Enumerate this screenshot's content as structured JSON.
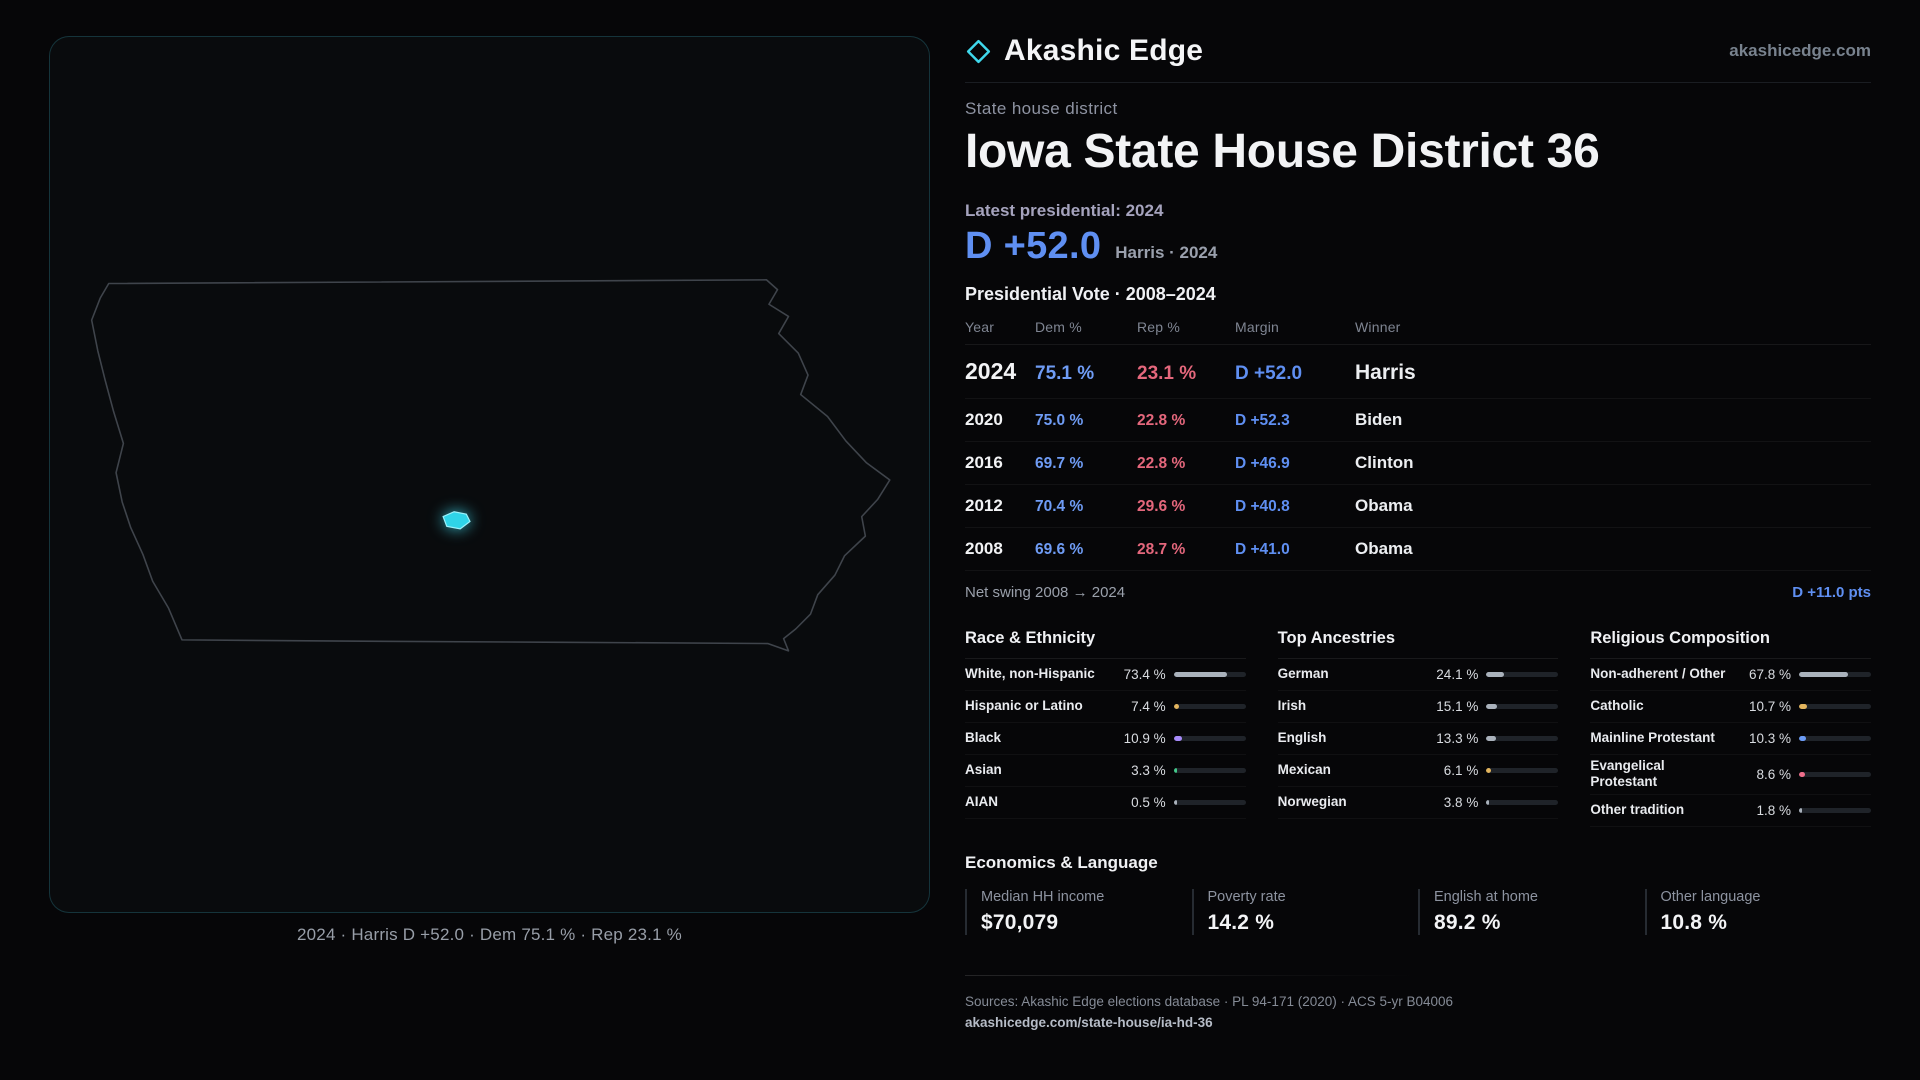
{
  "brand": {
    "name": "Akashic Edge",
    "domain": "akashicedge.com"
  },
  "map": {
    "caption": "2024 · Harris D +52.0 · Dem 75.1 % · Rep 23.1 %"
  },
  "profile": {
    "kicker": "State house district",
    "title": "Iowa State House District 36",
    "latest_label": "Latest presidential: 2024",
    "latest_margin": "D +52.0",
    "latest_sub": "Harris · 2024"
  },
  "vote_table": {
    "title": "Presidential Vote · 2008–2024",
    "columns": [
      "Year",
      "Dem %",
      "Rep %",
      "Margin",
      "Winner"
    ],
    "rows": [
      {
        "year": "2024",
        "dem": "75.1 %",
        "rep": "23.1 %",
        "margin": "D +52.0",
        "winner": "Harris"
      },
      {
        "year": "2020",
        "dem": "75.0 %",
        "rep": "22.8 %",
        "margin": "D +52.3",
        "winner": "Biden"
      },
      {
        "year": "2016",
        "dem": "69.7 %",
        "rep": "22.8 %",
        "margin": "D +46.9",
        "winner": "Clinton"
      },
      {
        "year": "2012",
        "dem": "70.4 %",
        "rep": "29.6 %",
        "margin": "D +40.8",
        "winner": "Obama"
      },
      {
        "year": "2008",
        "dem": "69.6 %",
        "rep": "28.7 %",
        "margin": "D +41.0",
        "winner": "Obama"
      }
    ],
    "swing_label": "Net swing 2008 → 2024",
    "swing_value": "D +11.0 pts"
  },
  "demographics": [
    {
      "title": "Race & Ethnicity",
      "items": [
        {
          "label": "White, non-Hispanic",
          "value": "73.4 %",
          "pct": 73.4,
          "color": "#aab2bc"
        },
        {
          "label": "Hispanic or Latino",
          "value": "7.4 %",
          "pct": 7.4,
          "color": "#e3b55e"
        },
        {
          "label": "Black",
          "value": "10.9 %",
          "pct": 10.9,
          "color": "#a78bfa"
        },
        {
          "label": "Asian",
          "value": "3.3 %",
          "pct": 3.3,
          "color": "#43c98a"
        },
        {
          "label": "AIAN",
          "value": "0.5 %",
          "pct": 0.5,
          "color": "#aab2bc"
        }
      ]
    },
    {
      "title": "Top Ancestries",
      "items": [
        {
          "label": "German",
          "value": "24.1 %",
          "pct": 24.1,
          "color": "#aab2bc"
        },
        {
          "label": "Irish",
          "value": "15.1 %",
          "pct": 15.1,
          "color": "#aab2bc"
        },
        {
          "label": "English",
          "value": "13.3 %",
          "pct": 13.3,
          "color": "#aab2bc"
        },
        {
          "label": "Mexican",
          "value": "6.1 %",
          "pct": 6.1,
          "color": "#e3b55e"
        },
        {
          "label": "Norwegian",
          "value": "3.8 %",
          "pct": 3.8,
          "color": "#aab2bc"
        }
      ]
    },
    {
      "title": "Religious Composition",
      "items": [
        {
          "label": "Non-adherent / Other",
          "value": "67.8 %",
          "pct": 67.8,
          "color": "#aab2bc"
        },
        {
          "label": "Catholic",
          "value": "10.7 %",
          "pct": 10.7,
          "color": "#e3b55e"
        },
        {
          "label": "Mainline Protestant",
          "value": "10.3 %",
          "pct": 10.3,
          "color": "#6b9bf5"
        },
        {
          "label": "Evangelical Protestant",
          "value": "8.6 %",
          "pct": 8.6,
          "color": "#ef6e8b"
        },
        {
          "label": "Other tradition",
          "value": "1.8 %",
          "pct": 1.8,
          "color": "#aab2bc"
        }
      ]
    }
  ],
  "economics": {
    "title": "Economics & Language",
    "stats": [
      {
        "label": "Median HH income",
        "value": "$70,079"
      },
      {
        "label": "Poverty rate",
        "value": "14.2 %"
      },
      {
        "label": "English at home",
        "value": "89.2 %"
      },
      {
        "label": "Other language",
        "value": "10.8 %"
      }
    ]
  },
  "footer": {
    "sources": "Sources: Akashic Edge elections database · PL 94-171 (2020) · ACS 5-yr B04006",
    "permalink": "akashicedge.com/state-house/ia-hd-36"
  },
  "colors": {
    "dem": "#6f9cf5",
    "rep": "#e4677c",
    "accent": "#3fd8ec"
  },
  "chart_data": {
    "type": "table",
    "title": "Presidential Vote · 2008–2024",
    "categories": [
      2024,
      2020,
      2016,
      2012,
      2008
    ],
    "series": [
      {
        "name": "Dem %",
        "values": [
          75.1,
          75.0,
          69.7,
          70.4,
          69.6
        ]
      },
      {
        "name": "Rep %",
        "values": [
          23.1,
          22.8,
          22.8,
          29.6,
          28.7
        ]
      },
      {
        "name": "Margin (D pts)",
        "values": [
          52.0,
          52.3,
          46.9,
          40.8,
          41.0
        ]
      }
    ],
    "winners": [
      "Harris",
      "Biden",
      "Clinton",
      "Obama",
      "Obama"
    ],
    "net_swing_pts": 11.0
  }
}
